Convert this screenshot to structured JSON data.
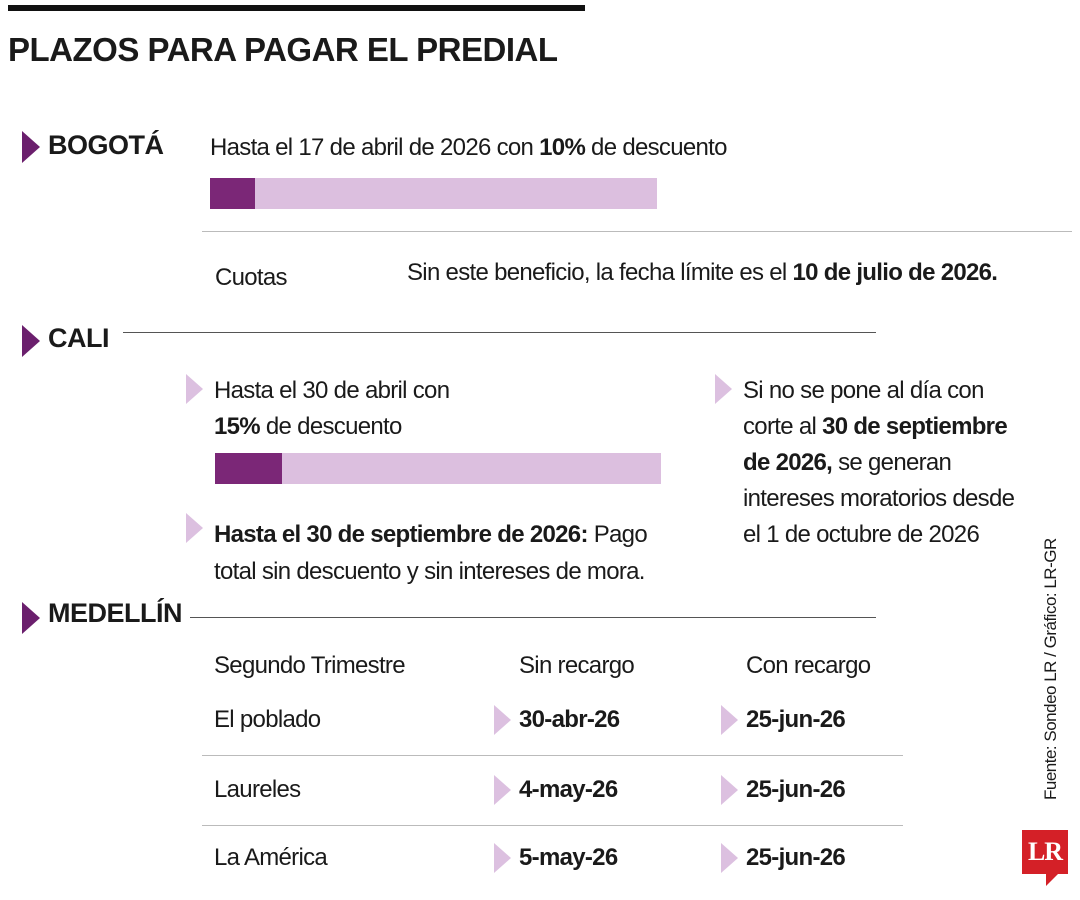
{
  "title": "PLAZOS PARA PAGAR EL PREDIAL",
  "bogota": {
    "name": "BOGOTÁ",
    "discount": [
      "Hasta el 17 de abril de 2026 con ",
      "10%",
      " de descuento"
    ],
    "cuotas": "Cuotas",
    "deadline": [
      "Sin este beneficio, la fecha límite es el ",
      "10 de julio de 2026."
    ]
  },
  "cali": {
    "name": "CALI",
    "discount": [
      "Hasta el 30 de abril con ",
      "15%",
      " de descuento"
    ],
    "full": [
      "Hasta el 30 de septiembre de 2026:",
      " Pago total sin descuento y sin intereses de mora."
    ],
    "late": [
      "Si no se pone al día con corte al ",
      "30 de septiembre de 2026,",
      " se generan intereses moratorios desde el 1 de octubre de 2026"
    ]
  },
  "medellin": {
    "name": "MEDELLÍN",
    "table": {
      "header": [
        "Segundo Trimestre",
        "Sin recargo",
        "Con recargo"
      ],
      "rows": [
        [
          "El poblado",
          "30-abr-26",
          "25-jun-26"
        ],
        [
          "Laureles",
          "4-may-26",
          "25-jun-26"
        ],
        [
          "La América",
          "5-may-26",
          "25-jun-26"
        ]
      ]
    }
  },
  "source": "Fuente: Sondeo LR / Gráfico: LR-GR",
  "logo": "LR"
}
